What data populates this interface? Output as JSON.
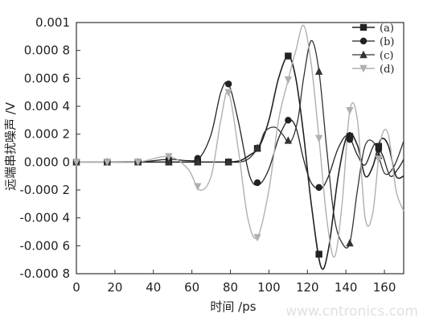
{
  "chart_data": {
    "type": "line",
    "title": "",
    "xlabel": "时间 /ps",
    "ylabel": "远端串扰噪声 /V",
    "xlim": [
      0,
      170
    ],
    "ylim": [
      -0.0008,
      0.001
    ],
    "x_ticks": [
      0,
      20,
      40,
      60,
      80,
      100,
      120,
      140,
      160
    ],
    "x_tick_labels": [
      "0",
      "20",
      "40",
      "60",
      "80",
      "100",
      "120",
      "140",
      "160"
    ],
    "y_ticks": [
      0.001,
      0.0008,
      0.0006,
      0.0004,
      0.0002,
      0,
      -0.0002,
      -0.0004,
      -0.0006,
      -0.0008
    ],
    "y_tick_labels": [
      "0.001",
      "0.000 8",
      "0.000 6",
      "0.000 4",
      "0.000 2",
      "0.000 0",
      "-0.000 2",
      "-0.000 4",
      "-0.000 6",
      "-0.000 8"
    ],
    "grid": false,
    "legend_position": "top-right",
    "colors": {
      "a": "#222222",
      "b": "#222222",
      "c": "#333333",
      "d": "#b0b0b0"
    },
    "series": [
      {
        "name": "(a)",
        "marker": "square",
        "x": [
          0,
          16,
          32,
          48,
          58,
          66,
          74,
          79,
          85,
          90,
          95,
          100,
          105,
          110,
          114,
          118,
          122,
          127,
          131,
          136,
          141,
          146,
          150,
          154,
          158,
          162,
          166,
          170
        ],
        "y": [
          0,
          0,
          0,
          0,
          0,
          0,
          0,
          0,
          1e-05,
          5e-05,
          0.00011,
          0.0003,
          0.0006,
          0.00076,
          0.0006,
          0.0002,
          -0.0003,
          -0.00075,
          -0.00062,
          -0.0001,
          0.0002,
          0.00012,
          -0.0001,
          -3e-05,
          0.00016,
          0.00012,
          -0.0001,
          -0.0001
        ]
      },
      {
        "name": "(b)",
        "marker": "circle",
        "x": [
          0,
          16,
          32,
          48,
          58,
          64,
          70,
          75,
          79,
          84,
          90,
          95,
          100,
          105,
          110,
          114,
          118,
          122,
          127,
          131,
          136,
          141,
          146,
          150,
          155,
          159,
          163,
          167,
          170
        ],
        "y": [
          0,
          0,
          0,
          2e-05,
          1e-05,
          3e-05,
          0.0002,
          0.0005,
          0.00056,
          0.0003,
          -0.0001,
          -0.00016,
          -5e-05,
          0.00017,
          0.0003,
          0.00025,
          2e-05,
          -0.00015,
          -0.00019,
          -0.0001,
          0.0001,
          0.00019,
          5e-05,
          -2e-05,
          0.00013,
          5e-05,
          -0.0001,
          -5e-05,
          2e-05
        ]
      },
      {
        "name": "(c)",
        "marker": "triangle-up",
        "x": [
          0,
          16,
          32,
          48,
          58,
          66,
          74,
          79,
          85,
          90,
          95,
          98,
          103,
          107,
          111,
          115,
          118,
          122,
          126,
          130,
          134,
          138,
          142,
          146,
          150,
          155,
          160,
          165,
          170
        ],
        "y": [
          0,
          0,
          0,
          0,
          0,
          0,
          0,
          0,
          0,
          3e-05,
          0.00012,
          0.00022,
          0.00025,
          0.0002,
          0.00014,
          0.0003,
          0.0006,
          0.00087,
          0.00065,
          0.0001,
          -0.0004,
          -0.00058,
          -0.00058,
          -0.0002,
          0.00012,
          0.00013,
          -8e-05,
          -3e-05,
          0.00015
        ]
      },
      {
        "name": "(d)",
        "marker": "triangle-down",
        "x": [
          0,
          16,
          32,
          48,
          58,
          64,
          70,
          75,
          79,
          84,
          89,
          94,
          100,
          105,
          110,
          114,
          118,
          122,
          126,
          130,
          134,
          138,
          142,
          146,
          150,
          154,
          158,
          162,
          166,
          170
        ],
        "y": [
          0,
          0,
          0,
          4e-05,
          -5e-05,
          -0.0002,
          -0.0001,
          0.0003,
          0.0005,
          0.0001,
          -0.0004,
          -0.00054,
          -0.0002,
          0.0003,
          0.00059,
          0.0008,
          0.00098,
          0.0007,
          0.00017,
          -0.0004,
          -0.00068,
          -0.0003,
          0.00037,
          0.0003,
          -0.0004,
          -0.00036,
          0.00015,
          0.0002,
          -0.0002,
          -0.00035
        ]
      }
    ]
  },
  "watermark": "www.cntronics.com"
}
